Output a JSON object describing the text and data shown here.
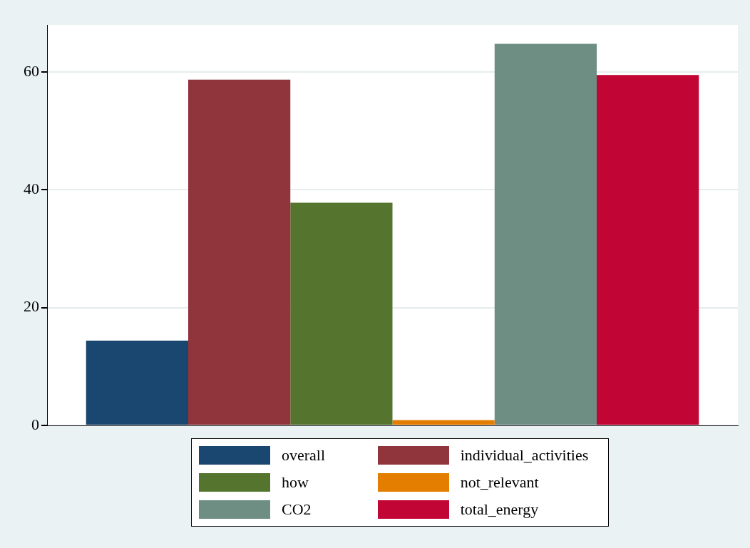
{
  "chart_data": {
    "type": "bar",
    "categories": [
      null
    ],
    "series": [
      {
        "name": "overall",
        "color": "#1a476f",
        "values": [
          14.4
        ]
      },
      {
        "name": "individual_activities",
        "color": "#90353b",
        "values": [
          58.7
        ]
      },
      {
        "name": "how",
        "color": "#55752f",
        "values": [
          37.8
        ]
      },
      {
        "name": "not_relevant",
        "color": "#e37e00",
        "values": [
          0.9
        ]
      },
      {
        "name": "CO2",
        "color": "#6e8e84",
        "values": [
          64.8
        ]
      },
      {
        "name": "total_energy",
        "color": "#c10534",
        "values": [
          59.5
        ]
      }
    ],
    "ylim": [
      0,
      68
    ],
    "yticks": [
      0,
      20,
      40,
      60
    ],
    "grid": "y",
    "legend": "bottom"
  }
}
